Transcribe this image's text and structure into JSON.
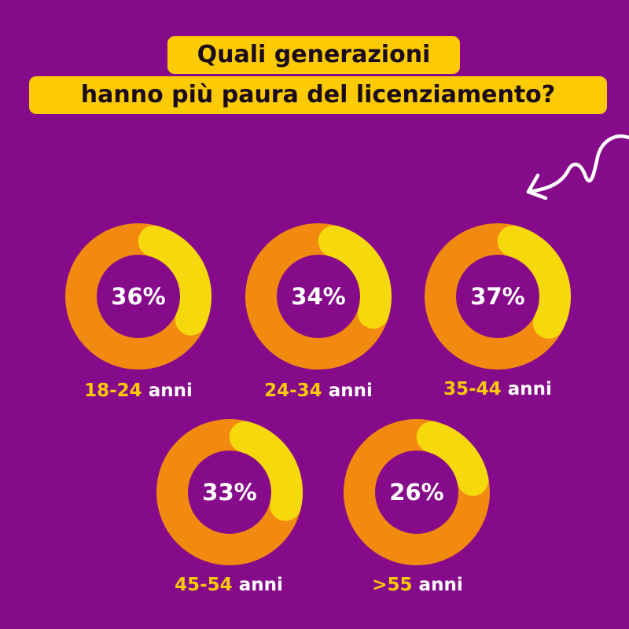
{
  "title": {
    "line1": "Quali generazioni",
    "line2": "hanno più paura del licenziamento?"
  },
  "colors": {
    "background": "#860b8a",
    "title_bg": "#fccb05",
    "ring_base": "#f28a10",
    "ring_fill": "#f6d90d",
    "label_range": "#fccb05",
    "text_white": "#ffffff"
  },
  "icons": {
    "arrow": "hand-drawn-arrow-pointing-down-left-icon"
  },
  "chart_data": {
    "type": "pie",
    "subtype": "donut-progress",
    "unit": "%",
    "items": [
      {
        "value": 36,
        "value_label": "36%",
        "range": "18-24",
        "suffix": " anni"
      },
      {
        "value": 34,
        "value_label": "34%",
        "range": "24-34",
        "suffix": " anni"
      },
      {
        "value": 37,
        "value_label": "37%",
        "range": "35-44",
        "suffix": " anni"
      },
      {
        "value": 33,
        "value_label": "33%",
        "range": "45-54",
        "suffix": " anni"
      },
      {
        "value": 26,
        "value_label": "26%",
        "range": ">55",
        "suffix": " anni"
      }
    ]
  }
}
